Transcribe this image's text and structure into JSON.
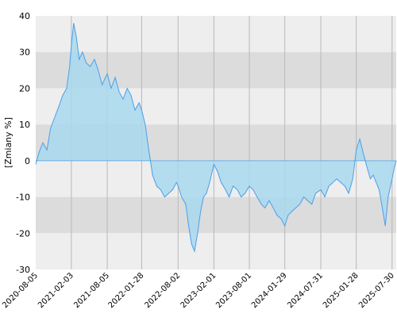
{
  "chart_data": {
    "type": "area",
    "ylabel": "[Zmiany %]",
    "ylim": [
      -30,
      40
    ],
    "y_ticks": [
      "40",
      "30",
      "20",
      "10",
      "0",
      "-10",
      "-20",
      "-30"
    ],
    "y_tick_values": [
      40,
      30,
      20,
      10,
      0,
      -10,
      -20,
      -30
    ],
    "x_ticks": [
      "2020-08-05",
      "2021-02-03",
      "2021-08-05",
      "2022-01-28",
      "2022-08-02",
      "2023-02-01",
      "2023-08-01",
      "2024-01-29",
      "2024-07-31",
      "2025-01-28",
      "2025-07-30"
    ],
    "xlim": [
      "2020-08-05",
      "2025-08-20"
    ],
    "grid": "bands",
    "colors": {
      "band_light": "#eeeeee",
      "band_dark": "#dcdcdc",
      "line": "#4a9fe8",
      "fill": "#a8d8ee",
      "grid_line": "#b8b8b8"
    },
    "series": [
      {
        "x": [
          "2020-08-05",
          "2020-08-20",
          "2020-09-10",
          "2020-10-01",
          "2020-10-20",
          "2020-11-10",
          "2020-12-01",
          "2020-12-20",
          "2021-01-10",
          "2021-01-25",
          "2021-02-03",
          "2021-02-15",
          "2021-03-01",
          "2021-03-15",
          "2021-04-01",
          "2021-04-20",
          "2021-05-10",
          "2021-06-01",
          "2021-06-20",
          "2021-07-10",
          "2021-08-05",
          "2021-08-25",
          "2021-09-15",
          "2021-10-05",
          "2021-10-25",
          "2021-11-15",
          "2021-12-05",
          "2021-12-25",
          "2022-01-15",
          "2022-01-28",
          "2022-02-15",
          "2022-03-05",
          "2022-03-25",
          "2022-04-15",
          "2022-05-05",
          "2022-05-25",
          "2022-06-15",
          "2022-07-05",
          "2022-07-25",
          "2022-08-02",
          "2022-08-20",
          "2022-09-10",
          "2022-09-25",
          "2022-10-10",
          "2022-10-25",
          "2022-11-10",
          "2022-11-25",
          "2022-12-10",
          "2022-12-25",
          "2023-01-10",
          "2023-02-01",
          "2023-02-20",
          "2023-03-10",
          "2023-04-01",
          "2023-04-20",
          "2023-05-10",
          "2023-06-01",
          "2023-06-20",
          "2023-07-10",
          "2023-08-01",
          "2023-08-20",
          "2023-09-10",
          "2023-10-01",
          "2023-10-20",
          "2023-11-10",
          "2023-12-01",
          "2023-12-20",
          "2024-01-10",
          "2024-01-29",
          "2024-02-15",
          "2024-03-05",
          "2024-03-25",
          "2024-04-15",
          "2024-05-05",
          "2024-05-25",
          "2024-06-15",
          "2024-07-05",
          "2024-07-31",
          "2024-08-20",
          "2024-09-10",
          "2024-10-01",
          "2024-10-20",
          "2024-11-10",
          "2024-12-01",
          "2024-12-20",
          "2025-01-10",
          "2025-01-28",
          "2025-02-15",
          "2025-03-05",
          "2025-03-25",
          "2025-04-10",
          "2025-04-25",
          "2025-05-10",
          "2025-05-25",
          "2025-06-10",
          "2025-06-25",
          "2025-07-10",
          "2025-07-30",
          "2025-08-10",
          "2025-08-20"
        ],
        "y": [
          -1,
          2,
          5,
          3,
          9,
          12,
          15,
          18,
          20,
          26,
          32,
          38,
          34,
          28,
          30,
          27,
          26,
          28,
          25,
          21,
          24,
          20,
          23,
          19,
          17,
          20,
          18,
          14,
          16,
          14,
          10,
          3,
          -4,
          -7,
          -8,
          -10,
          -9,
          -8,
          -6,
          -7,
          -10,
          -12,
          -18,
          -23,
          -25,
          -20,
          -14,
          -10,
          -9,
          -6,
          -1,
          -3,
          -6,
          -8,
          -10,
          -7,
          -8,
          -10,
          -9,
          -7,
          -8,
          -10,
          -12,
          -13,
          -11,
          -13,
          -15,
          -16,
          -18,
          -15,
          -14,
          -13,
          -12,
          -10,
          -11,
          -12,
          -9,
          -8,
          -10,
          -7,
          -6,
          -5,
          -6,
          -7,
          -9,
          -5,
          3,
          6,
          2,
          -2,
          -5,
          -4,
          -6,
          -8,
          -13,
          -18,
          -10,
          -5,
          -2,
          0
        ]
      }
    ]
  }
}
